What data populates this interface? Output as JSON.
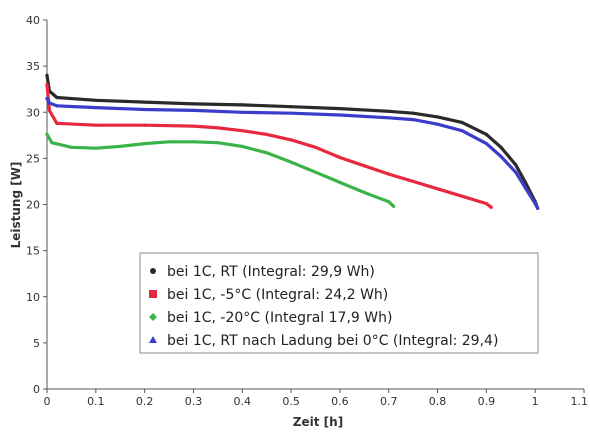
{
  "chart_data": {
    "type": "line",
    "xlabel": "Zeit [h]",
    "ylabel": "Leistung [W]",
    "xlim": [
      0,
      1.1
    ],
    "ylim": [
      0,
      40
    ],
    "x_ticks": [
      0,
      0.1,
      0.2,
      0.3,
      0.4,
      0.5,
      0.6,
      0.7,
      0.8,
      0.9,
      1,
      1.1
    ],
    "x_tick_labels": [
      "0",
      "0.1",
      "0.2",
      "0.3",
      "0.4",
      "0.5",
      "0.6",
      "0.7",
      "0.8",
      "0.9",
      "1",
      "1.1"
    ],
    "y_ticks": [
      0,
      5,
      10,
      15,
      20,
      25,
      30,
      35,
      40
    ],
    "y_tick_labels": [
      "0",
      "5",
      "10",
      "15",
      "20",
      "25",
      "30",
      "35",
      "40"
    ],
    "grid": false,
    "legend_position": "center",
    "series": [
      {
        "name": "bei 1C, RT (Integral: 29,9 Wh)",
        "color": "#2a2a2a",
        "marker": "dot",
        "points": [
          [
            0,
            34
          ],
          [
            0.005,
            32.3
          ],
          [
            0.02,
            31.6
          ],
          [
            0.1,
            31.3
          ],
          [
            0.2,
            31.1
          ],
          [
            0.3,
            30.9
          ],
          [
            0.4,
            30.8
          ],
          [
            0.5,
            30.6
          ],
          [
            0.6,
            30.4
          ],
          [
            0.7,
            30.1
          ],
          [
            0.75,
            29.9
          ],
          [
            0.8,
            29.5
          ],
          [
            0.85,
            28.9
          ],
          [
            0.9,
            27.6
          ],
          [
            0.93,
            26.2
          ],
          [
            0.96,
            24.3
          ],
          [
            0.98,
            22.4
          ],
          [
            1.0,
            20.3
          ],
          [
            1.005,
            19.6
          ]
        ]
      },
      {
        "name": "bei 1C, -5°C (Integral: 24,2 Wh)",
        "color": "#e8283c",
        "marker": "square",
        "points": [
          [
            0,
            33
          ],
          [
            0.005,
            30.2
          ],
          [
            0.02,
            28.8
          ],
          [
            0.1,
            28.6
          ],
          [
            0.2,
            28.6
          ],
          [
            0.3,
            28.5
          ],
          [
            0.35,
            28.3
          ],
          [
            0.4,
            28.0
          ],
          [
            0.45,
            27.6
          ],
          [
            0.5,
            27.0
          ],
          [
            0.55,
            26.2
          ],
          [
            0.6,
            25.1
          ],
          [
            0.65,
            24.2
          ],
          [
            0.7,
            23.3
          ],
          [
            0.75,
            22.5
          ],
          [
            0.8,
            21.7
          ],
          [
            0.85,
            20.9
          ],
          [
            0.9,
            20.1
          ],
          [
            0.91,
            19.7
          ]
        ]
      },
      {
        "name": "bei 1C, -20°C (Integral 17,9 Wh)",
        "color": "#3cb34a",
        "marker": "diamond",
        "points": [
          [
            0,
            27.6
          ],
          [
            0.01,
            26.7
          ],
          [
            0.05,
            26.2
          ],
          [
            0.1,
            26.1
          ],
          [
            0.15,
            26.3
          ],
          [
            0.2,
            26.6
          ],
          [
            0.25,
            26.8
          ],
          [
            0.3,
            26.8
          ],
          [
            0.35,
            26.7
          ],
          [
            0.4,
            26.3
          ],
          [
            0.45,
            25.6
          ],
          [
            0.5,
            24.6
          ],
          [
            0.55,
            23.5
          ],
          [
            0.6,
            22.4
          ],
          [
            0.65,
            21.3
          ],
          [
            0.7,
            20.3
          ],
          [
            0.71,
            19.8
          ]
        ]
      },
      {
        "name": "bei 1C, RT nach Ladung bei 0°C (Integral: 29,4)",
        "color": "#3c3ccc",
        "marker": "triangle",
        "points": [
          [
            0,
            31.5
          ],
          [
            0.005,
            31.0
          ],
          [
            0.02,
            30.7
          ],
          [
            0.1,
            30.5
          ],
          [
            0.2,
            30.3
          ],
          [
            0.3,
            30.2
          ],
          [
            0.4,
            30.0
          ],
          [
            0.5,
            29.9
          ],
          [
            0.6,
            29.7
          ],
          [
            0.7,
            29.4
          ],
          [
            0.75,
            29.2
          ],
          [
            0.8,
            28.7
          ],
          [
            0.85,
            28.0
          ],
          [
            0.9,
            26.6
          ],
          [
            0.93,
            25.2
          ],
          [
            0.96,
            23.5
          ],
          [
            0.98,
            21.8
          ],
          [
            1.0,
            20.1
          ],
          [
            1.005,
            19.6
          ]
        ]
      }
    ]
  }
}
